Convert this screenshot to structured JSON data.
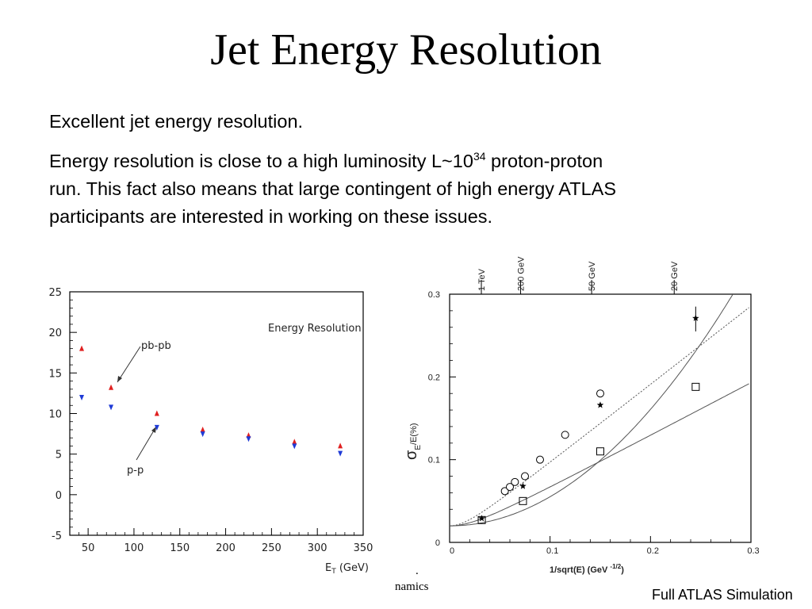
{
  "slide": {
    "title": "Jet Energy Resolution",
    "para1": "Excellent jet energy resolution.",
    "para2": {
      "before": "Energy resolution is close to a high luminosity L~10",
      "sup": "34",
      "after_line1": " proton-proton",
      "line2": "run.  This fact also means that large contingent of high energy ATLAS",
      "line3": "participants are interested in working on these issues."
    },
    "footer_left_dot": ".",
    "footer_left": "namics",
    "footer_right": "Full ATLAS Simulation"
  },
  "chart_data": [
    {
      "type": "scatter",
      "title": "Energy Resolution",
      "xlabel": "E_T (GeV)",
      "ylabel": "",
      "xlim": [
        30,
        350
      ],
      "ylim": [
        -5,
        25
      ],
      "xticks": [
        50,
        100,
        150,
        200,
        250,
        300,
        350
      ],
      "yticks": [
        -5,
        0,
        5,
        10,
        15,
        20,
        25
      ],
      "annotations": [
        "pb-pb",
        "p-p"
      ],
      "series": [
        {
          "name": "pb-pb",
          "marker": "triangle-up",
          "color": "#e02020",
          "x": [
            43,
            75,
            125,
            175,
            225,
            275,
            325
          ],
          "y": [
            18.0,
            13.2,
            10.0,
            8.0,
            7.3,
            6.5,
            6.0
          ]
        },
        {
          "name": "p-p",
          "marker": "triangle-down",
          "color": "#1f3bd6",
          "x": [
            43,
            75,
            125,
            175,
            225,
            275,
            325
          ],
          "y": [
            12.0,
            10.8,
            8.3,
            7.5,
            6.9,
            6.0,
            5.1
          ]
        }
      ]
    },
    {
      "type": "scatter",
      "xlabel": "1/sqrt(E) (GeV",
      "xlabel_sup": "-1/2",
      "xlabel_close": ")",
      "ylabel_sigma": "σ",
      "ylabel_sub": "E",
      "ylabel_rest": "/E(%)",
      "xlim": [
        0,
        0.3
      ],
      "ylim": [
        0,
        0.3
      ],
      "xticks": [
        0,
        0.1,
        0.2,
        0.3
      ],
      "yticks": [
        0,
        0.1,
        0.2,
        0.3
      ],
      "top_axis": {
        "labels": [
          "1 TeV",
          "200 GeV",
          "50 GeV",
          "20 GeV"
        ],
        "x": [
          0.0316,
          0.0707,
          0.1414,
          0.2236
        ]
      },
      "series": [
        {
          "marker": "circle",
          "x": [
            0.055,
            0.06,
            0.065,
            0.075,
            0.09,
            0.115,
            0.15
          ],
          "y": [
            0.062,
            0.067,
            0.073,
            0.08,
            0.1,
            0.13,
            0.18
          ]
        },
        {
          "marker": "star",
          "x": [
            0.032,
            0.073,
            0.15,
            0.245
          ],
          "y": [
            0.029,
            0.068,
            0.166,
            0.271
          ]
        },
        {
          "marker": "square",
          "x": [
            0.032,
            0.073,
            0.15,
            0.245
          ],
          "y": [
            0.027,
            0.05,
            0.11,
            0.188
          ]
        }
      ],
      "curves": [
        {
          "style": "solid",
          "a": 0.02,
          "b": 1.1,
          "c": 0.0
        },
        {
          "style": "dotted",
          "a": 0.02,
          "b": 0.0,
          "c": 0.95
        },
        {
          "style": "solid",
          "a": 0.02,
          "b": 0.0,
          "c": 0.64
        }
      ]
    }
  ]
}
